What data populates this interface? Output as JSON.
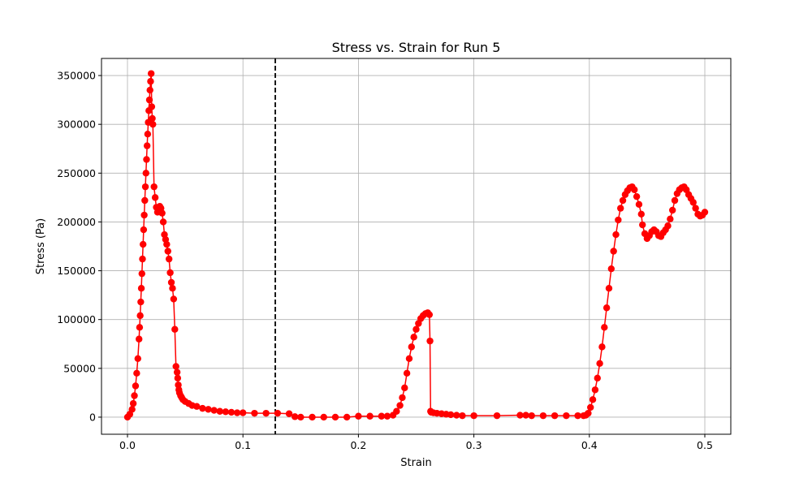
{
  "chart_data": {
    "type": "line",
    "title": "Stress vs. Strain for Run 5",
    "xlabel": "Strain",
    "ylabel": "Stress (Pa)",
    "xlim": [
      -0.0225,
      0.5225
    ],
    "ylim": [
      -17500,
      367500
    ],
    "x_ticks": [
      0.0,
      0.1,
      0.2,
      0.3,
      0.4,
      0.5
    ],
    "x_tick_labels": [
      "0.0",
      "0.1",
      "0.2",
      "0.3",
      "0.4",
      "0.5"
    ],
    "y_ticks": [
      0,
      50000,
      100000,
      150000,
      200000,
      250000,
      300000,
      350000
    ],
    "y_tick_labels": [
      "0",
      "50000",
      "100000",
      "150000",
      "200000",
      "250000",
      "300000",
      "350000"
    ],
    "grid": true,
    "vertical_line": {
      "x": 0.128,
      "style": "dashed",
      "color": "#000000"
    },
    "series": [
      {
        "color": "#ff0000",
        "marker": "circle",
        "x": [
          0.0,
          0.002,
          0.004,
          0.005,
          0.006,
          0.007,
          0.008,
          0.009,
          0.01,
          0.0105,
          0.011,
          0.0115,
          0.012,
          0.0125,
          0.013,
          0.0135,
          0.014,
          0.0145,
          0.015,
          0.0155,
          0.016,
          0.0165,
          0.017,
          0.0175,
          0.018,
          0.0185,
          0.019,
          0.0195,
          0.02,
          0.0205,
          0.021,
          0.0215,
          0.022,
          0.023,
          0.024,
          0.025,
          0.026,
          0.027,
          0.028,
          0.029,
          0.03,
          0.031,
          0.032,
          0.033,
          0.034,
          0.035,
          0.036,
          0.037,
          0.038,
          0.039,
          0.04,
          0.041,
          0.042,
          0.043,
          0.0435,
          0.044,
          0.0445,
          0.045,
          0.046,
          0.047,
          0.048,
          0.05,
          0.053,
          0.056,
          0.06,
          0.065,
          0.07,
          0.075,
          0.08,
          0.085,
          0.09,
          0.095,
          0.1,
          0.11,
          0.12,
          0.13,
          0.14,
          0.145,
          0.15,
          0.16,
          0.17,
          0.18,
          0.19,
          0.2,
          0.21,
          0.22,
          0.225,
          0.23,
          0.233,
          0.236,
          0.238,
          0.24,
          0.242,
          0.244,
          0.246,
          0.248,
          0.25,
          0.252,
          0.254,
          0.256,
          0.258,
          0.26,
          0.2615,
          0.262,
          0.2625,
          0.263,
          0.265,
          0.268,
          0.272,
          0.276,
          0.28,
          0.285,
          0.29,
          0.3,
          0.32,
          0.34,
          0.345,
          0.35,
          0.36,
          0.37,
          0.38,
          0.39,
          0.395,
          0.397,
          0.399,
          0.401,
          0.403,
          0.405,
          0.407,
          0.409,
          0.411,
          0.413,
          0.415,
          0.417,
          0.419,
          0.421,
          0.423,
          0.425,
          0.427,
          0.429,
          0.431,
          0.433,
          0.435,
          0.437,
          0.439,
          0.441,
          0.443,
          0.445,
          0.446,
          0.448,
          0.45,
          0.452,
          0.454,
          0.456,
          0.458,
          0.46,
          0.462,
          0.464,
          0.466,
          0.468,
          0.47,
          0.472,
          0.474,
          0.476,
          0.478,
          0.48,
          0.482,
          0.484,
          0.486,
          0.488,
          0.49,
          0.492,
          0.494,
          0.496,
          0.498,
          0.5
        ],
        "y": [
          0,
          3000,
          8000,
          14000,
          22000,
          32000,
          45000,
          60000,
          80000,
          92000,
          104000,
          118000,
          132000,
          147000,
          162000,
          177000,
          192000,
          207000,
          222000,
          236000,
          250000,
          264000,
          278000,
          290000,
          302000,
          314000,
          325000,
          335000,
          344000,
          352000,
          318000,
          306000,
          300000,
          236000,
          225000,
          215000,
          210000,
          212000,
          216000,
          214000,
          209000,
          200000,
          187000,
          182000,
          177000,
          170000,
          162000,
          148000,
          138000,
          132000,
          121000,
          90000,
          52000,
          46000,
          40000,
          33000,
          28000,
          25000,
          22000,
          20000,
          18000,
          16000,
          14000,
          12000,
          11000,
          9000,
          8000,
          7000,
          6000,
          5500,
          5000,
          4500,
          4500,
          4000,
          4000,
          4000,
          3500,
          500,
          0,
          0,
          0,
          0,
          0,
          1000,
          1000,
          1000,
          1000,
          2000,
          6000,
          12000,
          20000,
          30000,
          45000,
          60000,
          72000,
          82000,
          90000,
          96000,
          101000,
          104000,
          106000,
          107000,
          105000,
          78000,
          6000,
          5000,
          4500,
          4000,
          3500,
          3000,
          2500,
          2000,
          1500,
          1500,
          1500,
          2000,
          2000,
          1500,
          1500,
          1500,
          1500,
          1500,
          1500,
          2000,
          4000,
          10000,
          18000,
          28000,
          40000,
          55000,
          72000,
          92000,
          112000,
          132000,
          152000,
          170000,
          187000,
          202000,
          214000,
          222000,
          228000,
          232000,
          235000,
          236000,
          233000,
          226000,
          218000,
          208000,
          197000,
          188000,
          183000,
          186000,
          190000,
          192000,
          190000,
          186000,
          185000,
          189000,
          192000,
          196000,
          203000,
          212000,
          222000,
          229000,
          233000,
          235000,
          236000,
          233000,
          228000,
          224000,
          220000,
          214000,
          208000,
          206000,
          207000,
          210000
        ]
      }
    ]
  }
}
